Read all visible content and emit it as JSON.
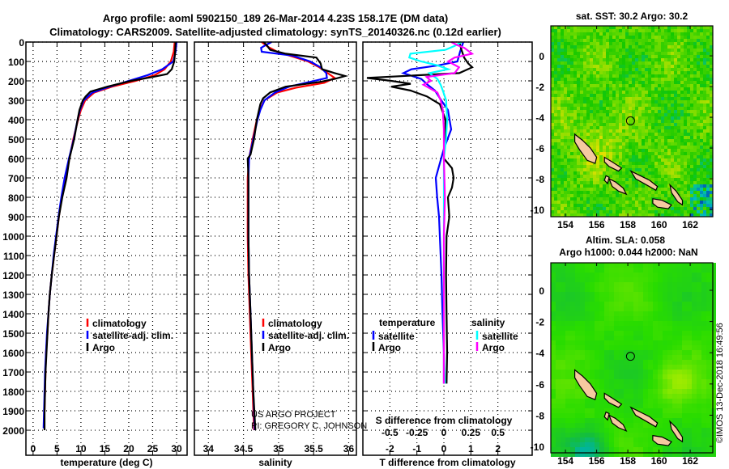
{
  "title": {
    "line1": "Argo profile: aoml 5902150_189 26-Mar-2014 4.23S 158.17E (DM data)",
    "line2": "Climatology: CARS2009. Satellite-adjusted climatology: synTS_20140326.nc (0.12d earlier)"
  },
  "credit": {
    "line1": "US ARGO PROJECT",
    "line2": "PI: GREGORY C. JOHNSON"
  },
  "timestamp": "©IMOS 13-Dec-2018 16:49:56",
  "colors": {
    "climatology": "#ff0000",
    "satellite": "#0000ff",
    "argo": "#000000",
    "sal_satellite": "#00ffff",
    "sal_argo": "#ff00ff",
    "land": "#f5c9a0"
  },
  "chart_data": [
    {
      "type": "line",
      "id": "temperature",
      "xlabel": "temperature (deg C)",
      "ylabel": "",
      "xlim": [
        -1.5,
        32.2
      ],
      "ylim": [
        2129,
        0
      ],
      "grid": true,
      "xticks": [
        0,
        5,
        10,
        15,
        20,
        25,
        30
      ],
      "yticks": [
        0,
        100,
        200,
        300,
        400,
        500,
        600,
        700,
        800,
        900,
        1000,
        1100,
        1200,
        1300,
        1400,
        1500,
        1600,
        1700,
        1800,
        1900,
        2000
      ],
      "legend": {
        "position": "lower-center",
        "entries": [
          "climatology",
          "satellite-adj. clim.",
          "Argo"
        ]
      },
      "series": [
        {
          "name": "climatology",
          "color": "#ff0000",
          "depth": [
            0,
            50,
            100,
            140,
            170,
            200,
            230,
            260,
            300,
            350,
            400,
            500,
            600,
            700,
            800,
            900,
            1000,
            1100,
            1200,
            1300,
            1400,
            1500,
            1600,
            1700,
            1800,
            1900,
            1950
          ],
          "values": [
            29.6,
            29.4,
            28.8,
            27.5,
            25.5,
            21.5,
            16.5,
            12.8,
            10.9,
            10.0,
            9.4,
            8.4,
            7.6,
            6.8,
            6.0,
            5.4,
            4.9,
            4.4,
            3.9,
            3.5,
            3.2,
            3.0,
            2.7,
            2.6,
            2.5,
            2.4,
            2.3
          ]
        },
        {
          "name": "satellite-adj. clim.",
          "color": "#0000ff",
          "depth": [
            0,
            50,
            100,
            140,
            170,
            200,
            230,
            260,
            300,
            350,
            400,
            500,
            600,
            700,
            800,
            900,
            1000,
            1100,
            1200,
            1300,
            1400,
            1500,
            1600,
            1700,
            1800,
            1900,
            1990
          ],
          "values": [
            30.0,
            29.8,
            29.3,
            27.0,
            24.0,
            20.0,
            16.0,
            12.4,
            10.6,
            9.8,
            9.3,
            8.5,
            7.5,
            6.6,
            5.9,
            5.3,
            4.8,
            4.3,
            3.9,
            3.5,
            3.2,
            2.9,
            2.7,
            2.5,
            2.4,
            2.3,
            2.2
          ]
        },
        {
          "name": "Argo",
          "color": "#000000",
          "depth": [
            0,
            50,
            100,
            140,
            165,
            180,
            200,
            230,
            255,
            280,
            300,
            350,
            400,
            500,
            600,
            700,
            800,
            900,
            1000,
            1100,
            1200,
            1300,
            1400,
            1500,
            1600,
            1700,
            1800,
            1900,
            2000
          ],
          "values": [
            29.8,
            29.7,
            29.5,
            29.0,
            28.0,
            25.0,
            20.5,
            15.5,
            12.0,
            11.0,
            10.4,
            9.7,
            9.3,
            8.6,
            7.6,
            7.0,
            6.1,
            5.4,
            4.9,
            4.4,
            3.9,
            3.5,
            3.2,
            3.0,
            2.8,
            2.6,
            2.5,
            2.4,
            2.4
          ]
        }
      ]
    },
    {
      "type": "line",
      "id": "salinity",
      "xlabel": "salinity",
      "xlim": [
        33.8,
        36.11
      ],
      "ylim": [
        2129,
        0
      ],
      "grid": true,
      "xticks": [
        34,
        34.5,
        35,
        35.5,
        36
      ],
      "xticklabels": [
        "34",
        "34.5",
        "35",
        "35.5",
        "36"
      ],
      "legend": {
        "position": "lower-center",
        "entries": [
          "climatology",
          "satellite-adj. clim.",
          "Argo"
        ]
      },
      "series": [
        {
          "name": "climatology",
          "color": "#ff0000",
          "depth": [
            0,
            25,
            50,
            75,
            100,
            130,
            160,
            185,
            210,
            235,
            260,
            300,
            350,
            400,
            500,
            600,
            700,
            800,
            1000,
            1200,
            1400,
            1600,
            1800,
            2000
          ],
          "values": [
            34.76,
            34.85,
            34.98,
            35.2,
            35.42,
            35.58,
            35.7,
            35.8,
            35.65,
            35.25,
            34.98,
            34.8,
            34.73,
            34.69,
            34.63,
            34.58,
            34.56,
            34.56,
            34.56,
            34.57,
            34.59,
            34.61,
            34.63,
            34.65
          ]
        },
        {
          "name": "satellite-adj. clim.",
          "color": "#0000ff",
          "depth": [
            0,
            15,
            30,
            50,
            70,
            100,
            130,
            160,
            185,
            205,
            230,
            260,
            300,
            350,
            400,
            500,
            600,
            700,
            800,
            1000,
            1200,
            1400,
            1600,
            1800,
            2000
          ],
          "values": [
            34.9,
            34.82,
            34.75,
            34.76,
            35.2,
            35.45,
            35.6,
            35.68,
            35.69,
            35.45,
            35.15,
            34.95,
            34.8,
            34.74,
            34.7,
            34.64,
            34.58,
            34.57,
            34.57,
            34.57,
            34.58,
            34.6,
            34.62,
            34.64,
            34.66
          ]
        },
        {
          "name": "Argo",
          "color": "#000000",
          "depth": [
            0,
            20,
            40,
            60,
            80,
            110,
            140,
            160,
            175,
            190,
            205,
            230,
            260,
            290,
            320,
            400,
            500,
            580,
            600,
            700,
            800,
            1000,
            1200,
            1400,
            1600,
            1800,
            2000
          ],
          "values": [
            34.79,
            34.84,
            34.88,
            35.1,
            35.54,
            35.6,
            35.62,
            35.8,
            35.95,
            35.8,
            35.6,
            35.1,
            34.88,
            34.78,
            34.74,
            34.69,
            34.65,
            34.6,
            34.56,
            34.57,
            34.57,
            34.57,
            34.58,
            34.6,
            34.62,
            34.64,
            34.67
          ]
        }
      ]
    },
    {
      "type": "line",
      "id": "differences",
      "xlabel": "T difference from climatology",
      "xlim": [
        -3.0,
        3.27
      ],
      "ylim": [
        2129,
        0
      ],
      "grid": true,
      "xticks": [
        -2,
        -1,
        0,
        1,
        2
      ],
      "secondary_axis": {
        "label": "S difference from climatology",
        "ticks": [
          -0.5,
          -0.25,
          0,
          0.25,
          0.5
        ],
        "ticklabels": [
          "-0.5",
          "-0.25",
          "0",
          "0.25",
          "0.5"
        ],
        "scale_factor": 4
      },
      "legend": {
        "temperature_title": "temperature",
        "salinity_title": "salinity",
        "entries": [
          "satellite",
          "Argo",
          "satellite",
          "Argo"
        ]
      },
      "series": [
        {
          "name": "T satellite",
          "axis": "T",
          "color": "#0000ff",
          "depth": [
            0,
            50,
            100,
            120,
            140,
            160,
            190,
            220,
            250,
            300,
            350,
            450,
            550,
            650,
            700,
            800,
            900,
            1000,
            1200,
            1400,
            1600,
            1760
          ],
          "values": [
            0.72,
            0.6,
            0.5,
            -0.2,
            -1.2,
            -1.5,
            -0.84,
            -0.6,
            -0.33,
            -0.1,
            0.15,
            0.27,
            0.0,
            -0.2,
            -0.3,
            -0.25,
            -0.18,
            -0.15,
            -0.09,
            -0.05,
            0.0,
            0.0
          ]
        },
        {
          "name": "T Argo",
          "axis": "T",
          "color": "#000000",
          "depth": [
            0,
            40,
            80,
            110,
            130,
            160,
            185,
            200,
            215,
            230,
            250,
            280,
            320,
            400,
            500,
            600,
            650,
            700,
            750,
            800,
            900,
            1000,
            1200,
            1400,
            1600,
            1760
          ],
          "values": [
            0.57,
            0.65,
            0.75,
            0.9,
            1.05,
            0.57,
            -2.85,
            -1.95,
            -1.23,
            -1.95,
            -1.23,
            -0.63,
            -0.15,
            0.06,
            0.05,
            0.0,
            0.3,
            0.36,
            0.3,
            0.15,
            0.2,
            0.1,
            0.08,
            0.1,
            0.12,
            0.1
          ]
        },
        {
          "name": "S satellite",
          "axis": "S",
          "color": "#00ffff",
          "depth": [
            0,
            20,
            40,
            60,
            80,
            100,
            120,
            140,
            160,
            190,
            220,
            250,
            300,
            400,
            500,
            600,
            800,
            1000,
            1200,
            1400,
            1600,
            1760
          ],
          "values": [
            0.165,
            0.1,
            0.015,
            -0.31,
            -0.32,
            -0.21,
            -0.06,
            0.04,
            -0.135,
            -0.06,
            -0.03,
            -0.01,
            0.02,
            0.03,
            0.02,
            0.0,
            0.0,
            0.0,
            0.0,
            0.0,
            0.0,
            0.01
          ]
        },
        {
          "name": "S Argo",
          "axis": "S",
          "color": "#ff00ff",
          "depth": [
            0,
            15,
            30,
            60,
            80,
            100,
            130,
            160,
            180,
            200,
            220,
            260,
            300,
            350,
            450,
            600,
            800,
            1000,
            1200,
            1400,
            1600,
            1760
          ],
          "values": [
            0.07,
            0.12,
            0.19,
            0.26,
            0.1,
            0.04,
            0.14,
            0.1,
            -0.16,
            -0.12,
            -0.19,
            -0.06,
            -0.03,
            -0.01,
            0.0,
            0.0,
            0.01,
            0.0,
            0.0,
            0.0,
            0.0,
            0.0
          ]
        }
      ]
    },
    {
      "type": "heatmap",
      "id": "sst-map",
      "title": "sat. SST: 30.2 Argo: 30.2",
      "xlim": [
        153.06,
        163.45
      ],
      "ylim": [
        -10.47,
        1.95
      ],
      "xticks": [
        154,
        156,
        158,
        160,
        162
      ],
      "yticks": [
        0,
        -2,
        -4,
        -6,
        -8,
        -10
      ],
      "float_position": {
        "lon": 158.17,
        "lat": -4.23
      }
    },
    {
      "type": "heatmap",
      "id": "sla-map",
      "title": "Altim. SLA: 0.058",
      "subtitle": "Argo h1000: 0.044 h2000: NaN",
      "xlim": [
        153.06,
        163.45
      ],
      "ylim": [
        -10.41,
        1.76
      ],
      "xticks": [
        154,
        156,
        158,
        160,
        162
      ],
      "yticks": [
        0,
        -2,
        -4,
        -6,
        -8,
        -10
      ],
      "float_position": {
        "lon": 158.17,
        "lat": -4.23
      }
    }
  ],
  "islands": [
    [
      [
        154.6,
        -5.1
      ],
      [
        155.1,
        -5.5
      ],
      [
        155.6,
        -6.0
      ],
      [
        156.0,
        -6.6
      ],
      [
        155.9,
        -7.0
      ],
      [
        155.4,
        -6.8
      ],
      [
        154.9,
        -6.1
      ],
      [
        154.6,
        -5.6
      ]
    ],
    [
      [
        156.5,
        -6.6
      ],
      [
        157.0,
        -6.9
      ],
      [
        157.6,
        -7.3
      ],
      [
        157.4,
        -7.5
      ],
      [
        156.8,
        -7.2
      ],
      [
        156.5,
        -6.9
      ]
    ],
    [
      [
        158.2,
        -7.5
      ],
      [
        158.8,
        -7.8
      ],
      [
        159.4,
        -8.1
      ],
      [
        159.9,
        -8.5
      ],
      [
        159.8,
        -8.75
      ],
      [
        159.2,
        -8.4
      ],
      [
        158.5,
        -8.0
      ]
    ],
    [
      [
        156.8,
        -8.0
      ],
      [
        157.2,
        -8.2
      ],
      [
        157.7,
        -8.6
      ],
      [
        157.9,
        -9.0
      ],
      [
        157.4,
        -8.8
      ],
      [
        157.0,
        -8.5
      ]
    ],
    [
      [
        156.6,
        -7.8
      ],
      [
        156.8,
        -7.9
      ],
      [
        156.7,
        -8.3
      ],
      [
        156.5,
        -8.1
      ]
    ],
    [
      [
        159.6,
        -9.3
      ],
      [
        160.2,
        -9.4
      ],
      [
        160.8,
        -9.7
      ],
      [
        160.6,
        -9.95
      ],
      [
        159.9,
        -9.85
      ],
      [
        159.6,
        -9.6
      ]
    ],
    [
      [
        160.7,
        -8.4
      ],
      [
        161.1,
        -8.8
      ],
      [
        161.5,
        -9.4
      ],
      [
        161.5,
        -9.7
      ],
      [
        161.2,
        -9.5
      ],
      [
        160.8,
        -8.9
      ]
    ]
  ]
}
